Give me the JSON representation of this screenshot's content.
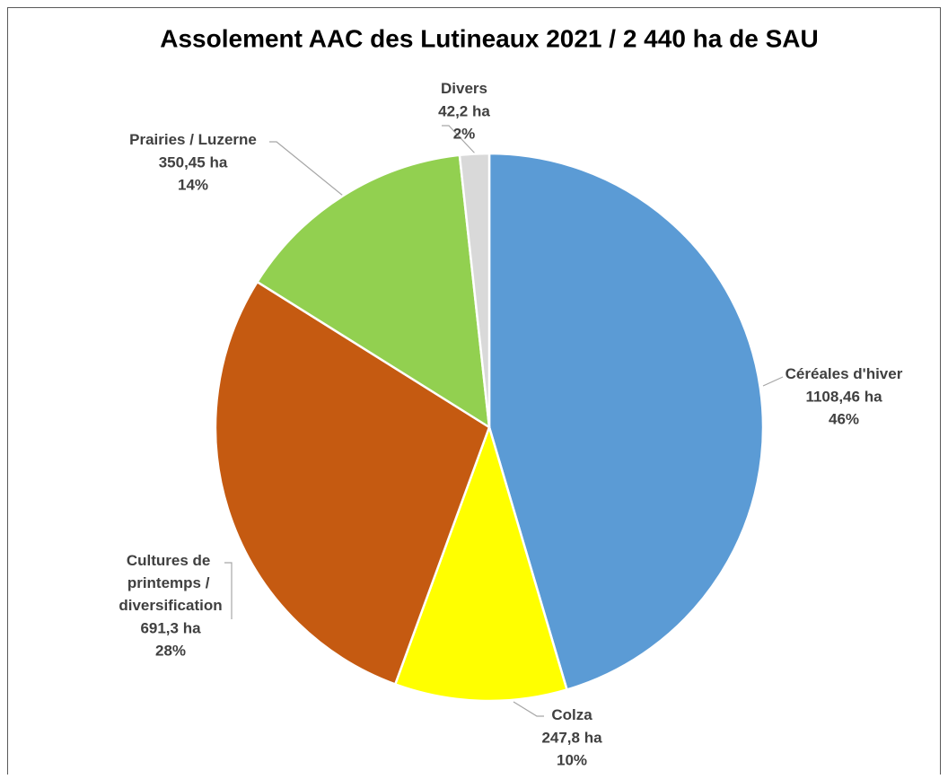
{
  "chart_data": {
    "type": "pie",
    "title": "Assolement AAC des Lutineaux 2021 / 2 440 ha de SAU",
    "categories": [
      "Céréales d'hiver",
      "Colza",
      "Cultures de printemps / diversification",
      "Prairies / Luzerne",
      "Divers"
    ],
    "values": [
      1108.46,
      247.8,
      691.3,
      350.45,
      42.2
    ],
    "value_labels": [
      "1108,46 ha",
      "247,8 ha",
      "691,3 ha",
      "350,45 ha",
      "42,2 ha"
    ],
    "percentages": [
      46,
      10,
      28,
      14,
      2
    ],
    "percentage_labels": [
      "46%",
      "10%",
      "28%",
      "14%",
      "2%"
    ],
    "colors": [
      "#5b9bd5",
      "#ffff00",
      "#c55a11",
      "#92d050",
      "#d9d9d9"
    ]
  }
}
